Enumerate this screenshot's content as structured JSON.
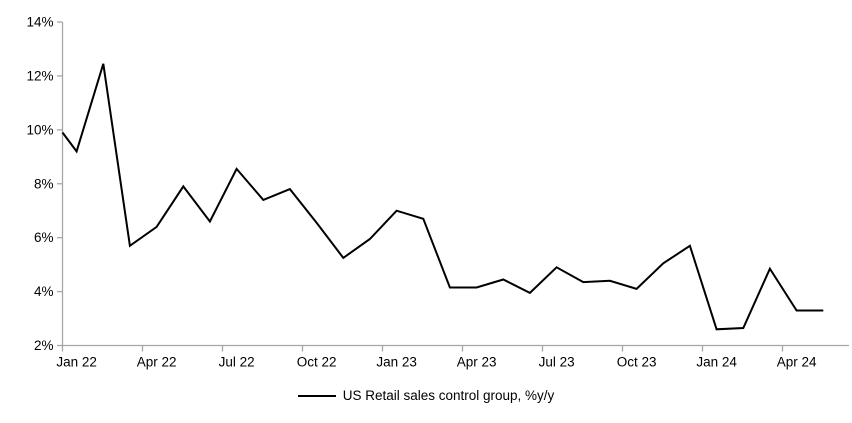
{
  "chart_data": {
    "type": "line",
    "title": "",
    "legend_position": "bottom",
    "grid": false,
    "x": [
      "Dec 21",
      "Jan 22",
      "Feb 22",
      "Mar 22",
      "Apr 22",
      "May 22",
      "Jun 22",
      "Jul 22",
      "Aug 22",
      "Sep 22",
      "Oct 22",
      "Nov 22",
      "Dec 22",
      "Jan 23",
      "Feb 23",
      "Mar 23",
      "Apr 23",
      "May 23",
      "Jun 23",
      "Jul 23",
      "Aug 23",
      "Sep 23",
      "Oct 23",
      "Nov 23",
      "Dec 23",
      "Jan 24",
      "Feb 24",
      "Mar 24",
      "Apr 24",
      "May 24"
    ],
    "series": [
      {
        "name": "US Retail sales control group, %y/y",
        "color": "#000000",
        "values": [
          9.9,
          9.2,
          12.45,
          5.7,
          6.4,
          7.9,
          6.6,
          8.55,
          7.4,
          7.8,
          6.55,
          5.25,
          5.95,
          7.0,
          6.7,
          4.15,
          4.15,
          4.45,
          3.95,
          4.9,
          4.35,
          4.4,
          4.1,
          5.05,
          5.7,
          2.6,
          2.65,
          4.85,
          3.3,
          3.3
        ]
      }
    ],
    "ylim": [
      2,
      14
    ],
    "ytick_step": 2,
    "ytick_suffix": "%",
    "ytick_labels": [
      "2%",
      "4%",
      "6%",
      "8%",
      "10%",
      "12%",
      "14%"
    ],
    "xtick_labels": [
      "Jan 22",
      "Apr 22",
      "Jul 22",
      "Oct 22",
      "Jan 23",
      "Apr 23",
      "Jul 23",
      "Oct 23",
      "Jan 24",
      "Apr 24"
    ],
    "xlabel": "",
    "ylabel": ""
  },
  "legend": {
    "label": "US Retail sales control group, %y/y"
  },
  "colors": {
    "line": "#000000",
    "axis": "#a6a6a6",
    "text": "#000000",
    "background": "#ffffff"
  }
}
